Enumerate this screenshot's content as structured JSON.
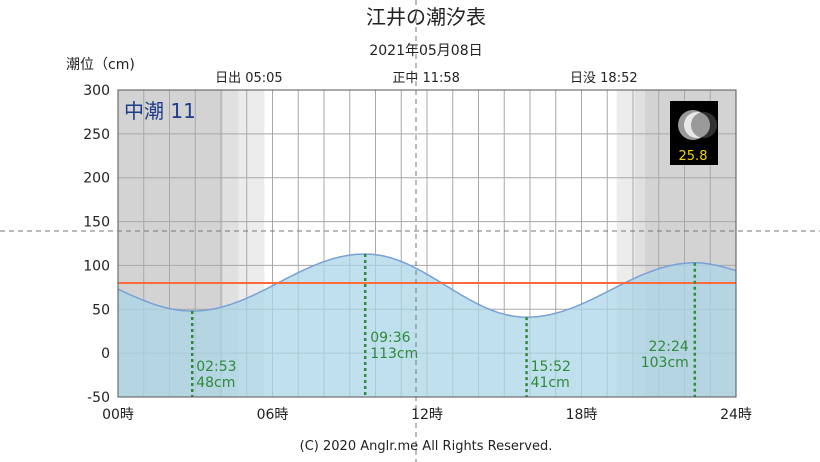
{
  "header": {
    "title": "江井の潮汐表",
    "date": "2021年05月08日",
    "ylabel": "潮位（cm)"
  },
  "sun": {
    "sunrise": "日出 05:05",
    "noon": "正中 11:58",
    "sunset": "日没 18:52"
  },
  "tide_name": "中潮 11",
  "moon": {
    "age": "25.8",
    "icon": "waning-crescent-moon-icon"
  },
  "copyright": "(C) 2020 Anglr.me All Rights Reserved.",
  "colors": {
    "fill": "#a9d5e6",
    "curve": "#7aa0d8",
    "reference_line": "#ff6a3d",
    "event_lines": "#2e8b3a",
    "night_shade": "#d3d3d3",
    "tide_name_text": "#1f3d8a",
    "moon_text": "#f5d400"
  },
  "chart_data": {
    "type": "area",
    "xlim": [
      0,
      24
    ],
    "ylim": [
      -50,
      300
    ],
    "xticks": [
      0,
      6,
      12,
      18,
      24
    ],
    "xtick_labels": [
      "00時",
      "06時",
      "12時",
      "18時",
      "24時"
    ],
    "yticks": [
      -50,
      0,
      50,
      100,
      150,
      200,
      250,
      300
    ],
    "ytick_labels": [
      "-50",
      "0",
      "50",
      "100",
      "150",
      "200",
      "250",
      "300"
    ],
    "grid": true,
    "reference_level": 80,
    "events": [
      {
        "time": "02:53",
        "height": "48cm",
        "hour": 2.883,
        "value": 48
      },
      {
        "time": "09:36",
        "height": "113cm",
        "hour": 9.6,
        "value": 113
      },
      {
        "time": "15:52",
        "height": "41cm",
        "hour": 15.867,
        "value": 41
      },
      {
        "time": "22:24",
        "height": "103cm",
        "hour": 22.4,
        "value": 103
      }
    ],
    "start_value": 73,
    "end_value": 94,
    "sunrise_hour": 5.083,
    "noon_hour": 11.967,
    "sunset_hour": 18.867
  }
}
